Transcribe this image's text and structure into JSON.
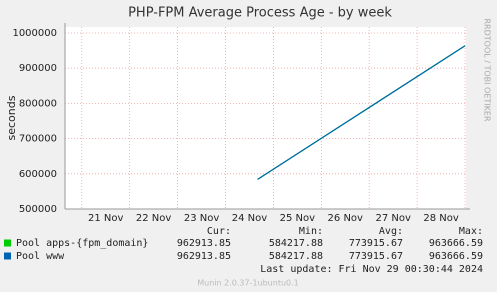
{
  "chart_data": {
    "type": "line",
    "title": "PHP-FPM Average Process Age - by week",
    "ylabel": "seconds",
    "side_text": "RRDTOOL / TOBI OETIKER",
    "ylim": [
      500000,
      1017000
    ],
    "yticks": [
      500000,
      600000,
      700000,
      800000,
      900000,
      1000000
    ],
    "xlim": [
      20.65,
      29.02
    ],
    "xticks": [
      {
        "value": 21.5,
        "label": "21 Nov"
      },
      {
        "value": 22.5,
        "label": "22 Nov"
      },
      {
        "value": 23.5,
        "label": "23 Nov"
      },
      {
        "value": 24.5,
        "label": "24 Nov"
      },
      {
        "value": 25.5,
        "label": "25 Nov"
      },
      {
        "value": 26.5,
        "label": "26 Nov"
      },
      {
        "value": 27.5,
        "label": "27 Nov"
      },
      {
        "value": 28.5,
        "label": "28 Nov"
      }
    ],
    "xgrid": [
      21,
      22,
      23,
      24,
      25,
      26,
      27,
      28,
      29
    ],
    "grid": true,
    "legend_headers": [
      "Cur:",
      "Min:",
      "Avg:",
      "Max:"
    ],
    "series": [
      {
        "name": "Pool apps-{fpm_domain}",
        "color": "#00cc00",
        "x": [
          24.67,
          29.0
        ],
        "values": [
          584217.88,
          963666.59
        ],
        "cur": 962913.85,
        "min": 584217.88,
        "avg": 773915.67,
        "max": 963666.59
      },
      {
        "name": "Pool www",
        "color": "#0066b3",
        "x": [
          24.67,
          29.0
        ],
        "values": [
          584217.88,
          963666.59
        ],
        "cur": 962913.85,
        "min": 584217.88,
        "avg": 773915.67,
        "max": 963666.59
      }
    ],
    "last_update": "Last update: Fri Nov 29 00:30:44 2024",
    "footer": "Munin 2.0.37-1ubuntu0.1"
  }
}
